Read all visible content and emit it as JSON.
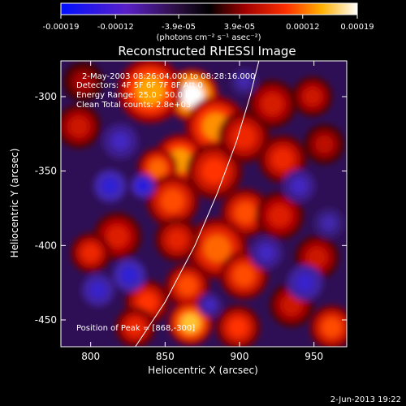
{
  "colorbar": {
    "tick_labels": [
      "-0.00019",
      "-0.00012",
      "-3.9e-05",
      "3.9e-05",
      "0.00012",
      "0.00019"
    ],
    "tick_values": [
      -0.00019,
      -0.00012,
      -3.9e-05,
      3.9e-05,
      0.00012,
      0.00019
    ],
    "range": [
      -0.00019,
      0.00019
    ],
    "unit_label": "(photons cm⁻² s⁻¹ asec⁻²)"
  },
  "annotations": {
    "time_range": "2-May-2003 08:26:04.000 to 08:28:16.000",
    "detectors": "Detectors: 4F 5F 6F 7F 8F  Att 0",
    "energy": "Energy Range: 25.0 - 50.0 keV",
    "clean": "Clean    Total counts: 2.8e+03",
    "peak": "Position of Peak = [868,-300]"
  },
  "footer_date": "2-Jun-2013 19:22",
  "chart_data": {
    "type": "heatmap",
    "title": "Reconstructed RHESSI Image",
    "xlabel": "Heliocentric X (arcsec)",
    "ylabel": "Heliocentric Y (arcsec)",
    "xlim": [
      780,
      972
    ],
    "ylim": [
      -468,
      -276
    ],
    "x_ticks": [
      800,
      850,
      900,
      950
    ],
    "y_ticks": [
      -300,
      -350,
      -400,
      -450
    ],
    "peak_position": [
      868,
      -300
    ],
    "colormap": "RHESSI red temperature",
    "limb_curve": [
      [
        830,
        -468
      ],
      [
        850,
        -438
      ],
      [
        870,
        -400
      ],
      [
        885,
        -365
      ],
      [
        898,
        -330
      ],
      [
        907,
        -300
      ],
      [
        913,
        -276
      ]
    ],
    "blobs": [
      {
        "x": 868,
        "y": -299,
        "value": 1.0,
        "r": 13
      },
      {
        "x": 840,
        "y": -296,
        "value": 0.72,
        "r": 16
      },
      {
        "x": 884,
        "y": -320,
        "value": 0.68,
        "r": 15
      },
      {
        "x": 860,
        "y": -343,
        "value": 0.7,
        "r": 13
      },
      {
        "x": 845,
        "y": -348,
        "value": 0.6,
        "r": 10
      },
      {
        "x": 883,
        "y": -350,
        "value": 0.5,
        "r": 14
      },
      {
        "x": 855,
        "y": -370,
        "value": 0.55,
        "r": 13
      },
      {
        "x": 903,
        "y": -327,
        "value": 0.45,
        "r": 13
      },
      {
        "x": 929,
        "y": -342,
        "value": 0.45,
        "r": 12
      },
      {
        "x": 922,
        "y": -305,
        "value": 0.38,
        "r": 12
      },
      {
        "x": 949,
        "y": -300,
        "value": 0.35,
        "r": 10
      },
      {
        "x": 904,
        "y": -378,
        "value": 0.55,
        "r": 12
      },
      {
        "x": 927,
        "y": -380,
        "value": 0.4,
        "r": 12
      },
      {
        "x": 885,
        "y": -402,
        "value": 0.6,
        "r": 15
      },
      {
        "x": 858,
        "y": -396,
        "value": 0.42,
        "r": 11
      },
      {
        "x": 818,
        "y": -394,
        "value": 0.4,
        "r": 12
      },
      {
        "x": 800,
        "y": -405,
        "value": 0.45,
        "r": 10
      },
      {
        "x": 903,
        "y": -420,
        "value": 0.55,
        "r": 12
      },
      {
        "x": 865,
        "y": -427,
        "value": 0.55,
        "r": 11
      },
      {
        "x": 838,
        "y": -438,
        "value": 0.5,
        "r": 11
      },
      {
        "x": 867,
        "y": -452,
        "value": 0.8,
        "r": 11
      },
      {
        "x": 830,
        "y": -455,
        "value": 0.45,
        "r": 10
      },
      {
        "x": 899,
        "y": -455,
        "value": 0.5,
        "r": 11
      },
      {
        "x": 935,
        "y": -440,
        "value": 0.35,
        "r": 11
      },
      {
        "x": 962,
        "y": -455,
        "value": 0.55,
        "r": 11
      },
      {
        "x": 952,
        "y": -408,
        "value": 0.35,
        "r": 11
      },
      {
        "x": 957,
        "y": -332,
        "value": 0.3,
        "r": 10
      },
      {
        "x": 792,
        "y": -320,
        "value": 0.35,
        "r": 11
      },
      {
        "x": 795,
        "y": -290,
        "value": 0.25,
        "r": 10
      },
      {
        "x": 820,
        "y": -330,
        "value": -0.35,
        "r": 12
      },
      {
        "x": 813,
        "y": -360,
        "value": -0.45,
        "r": 11
      },
      {
        "x": 835,
        "y": -360,
        "value": -0.5,
        "r": 8
      },
      {
        "x": 826,
        "y": -420,
        "value": -0.45,
        "r": 11
      },
      {
        "x": 805,
        "y": -430,
        "value": -0.4,
        "r": 11
      },
      {
        "x": 918,
        "y": -405,
        "value": -0.35,
        "r": 11
      },
      {
        "x": 944,
        "y": -425,
        "value": -0.4,
        "r": 12
      },
      {
        "x": 940,
        "y": -360,
        "value": -0.35,
        "r": 11
      },
      {
        "x": 960,
        "y": -385,
        "value": -0.3,
        "r": 10
      },
      {
        "x": 903,
        "y": -290,
        "value": -0.3,
        "r": 9
      },
      {
        "x": 880,
        "y": -440,
        "value": -0.35,
        "r": 8
      }
    ]
  }
}
